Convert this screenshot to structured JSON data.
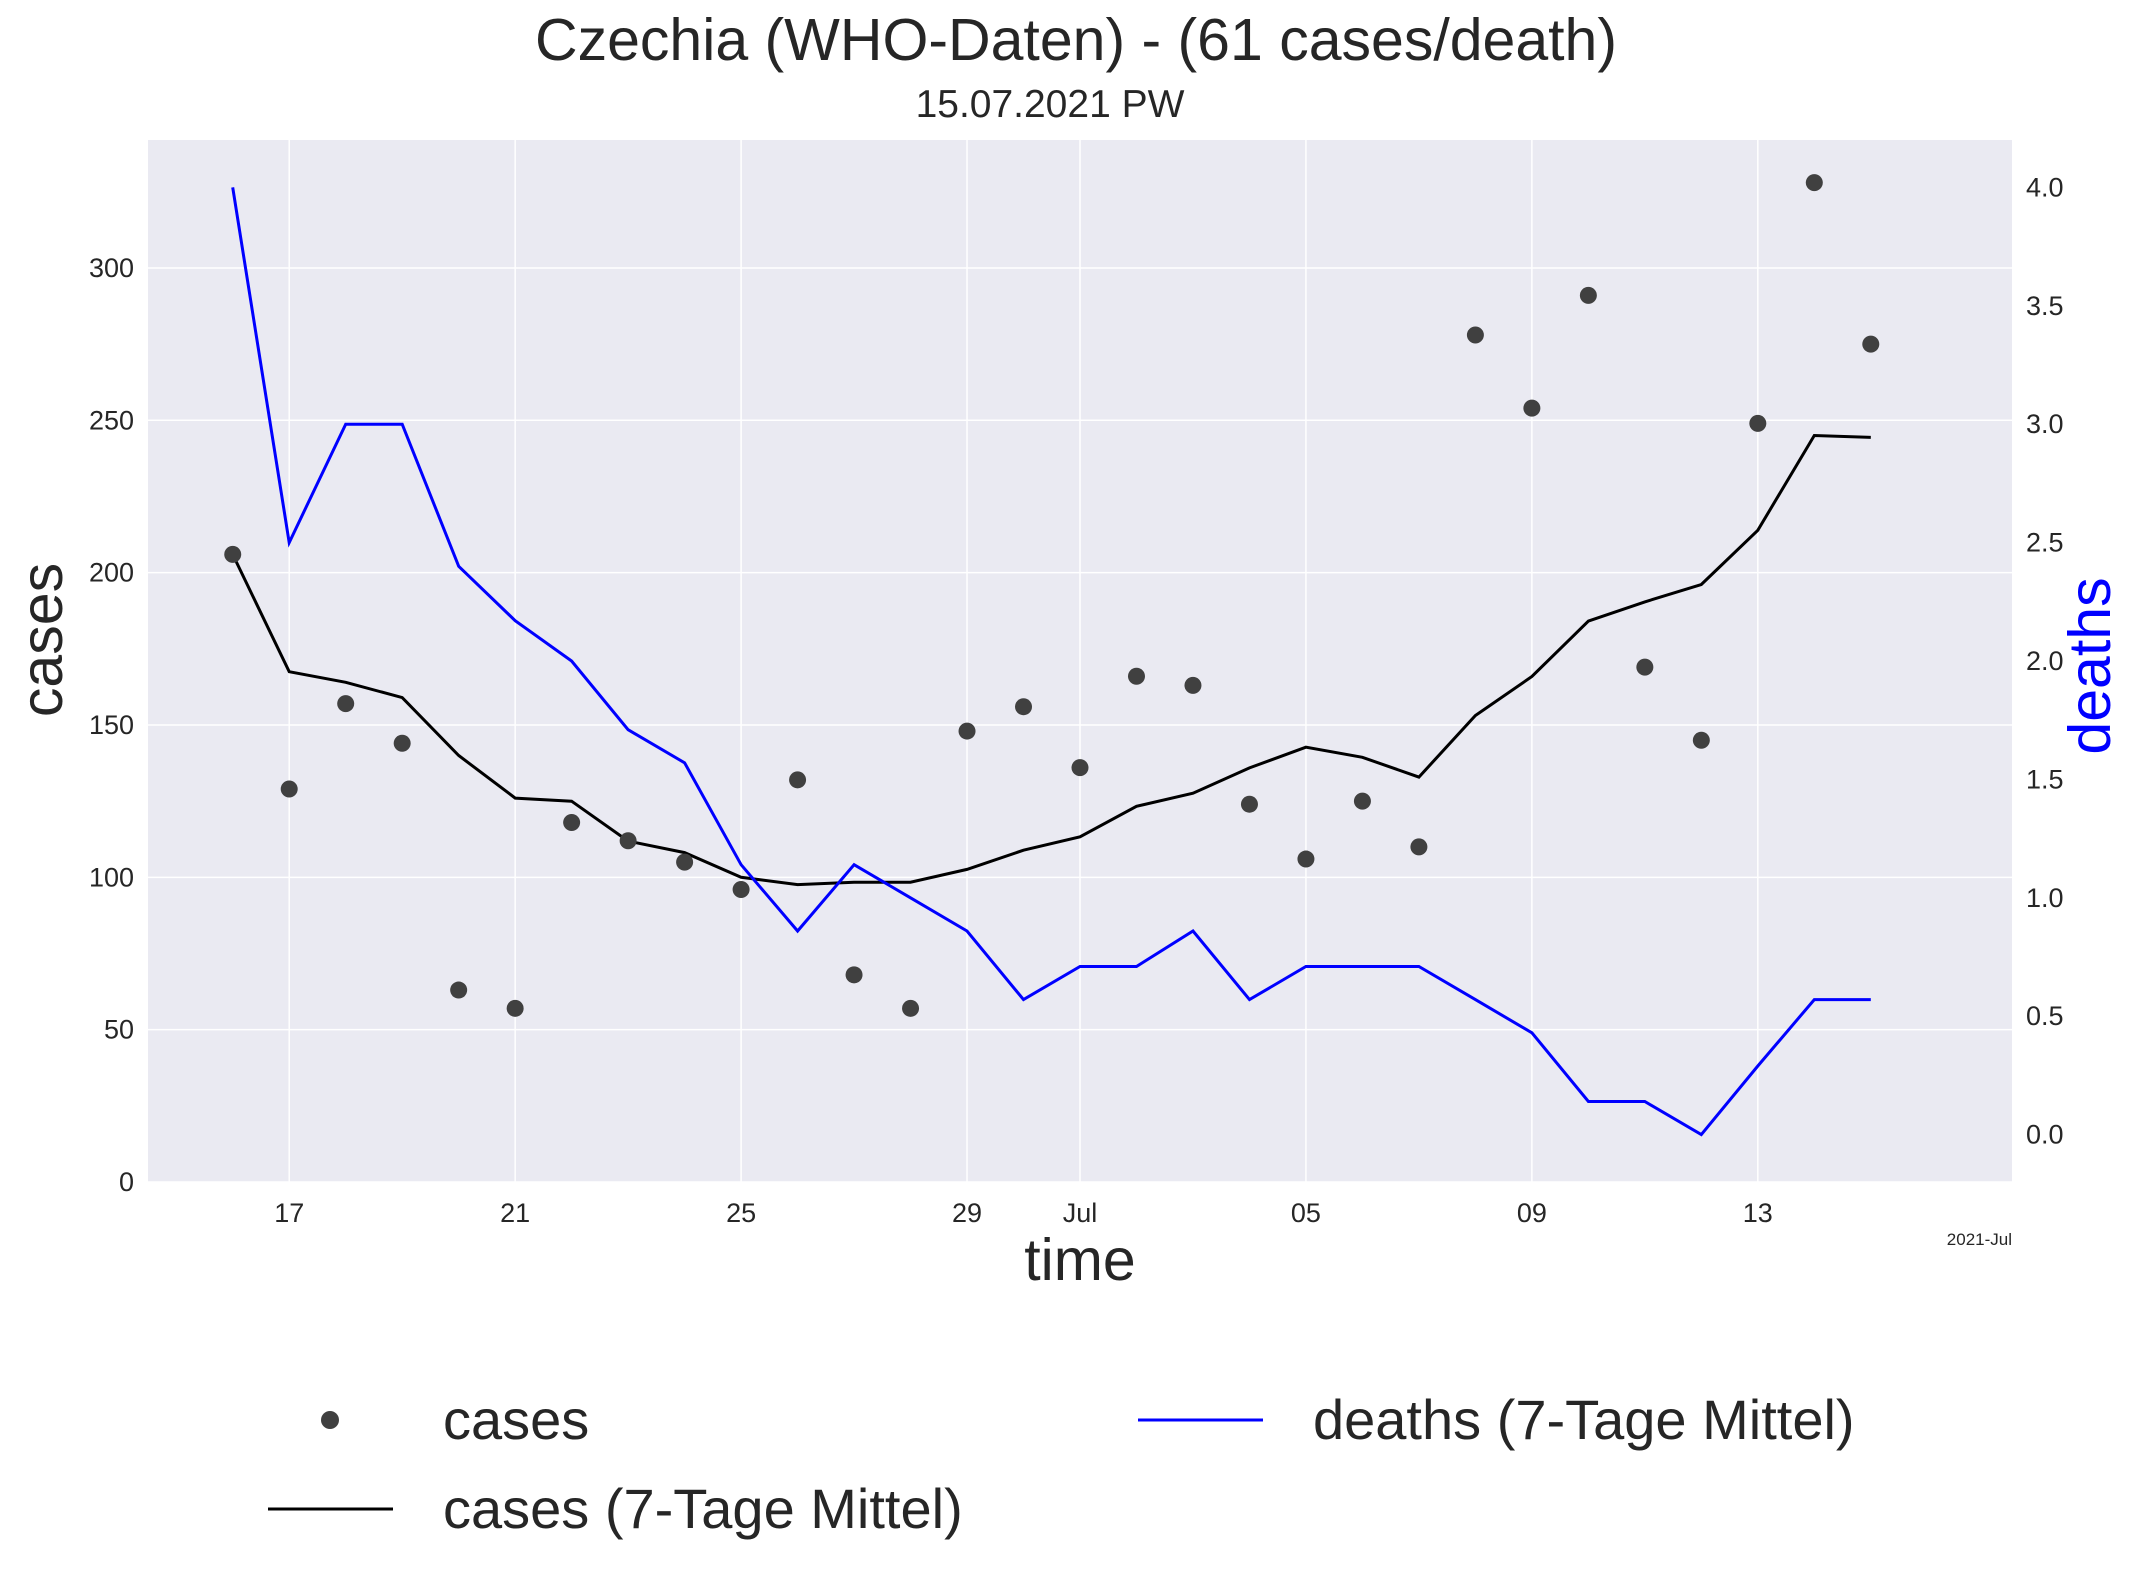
{
  "chart_data": {
    "type": "line",
    "title": "Czechia (WHO-Daten) - (61 cases/death)",
    "subtitle": "15.07.2021 PW",
    "xlabel": "time",
    "ylabel_left": "cases",
    "ylabel_right": "deaths",
    "x_offset_label": "2021-Jul",
    "x": [
      "2021-06-16",
      "2021-06-17",
      "2021-06-18",
      "2021-06-19",
      "2021-06-20",
      "2021-06-21",
      "2021-06-22",
      "2021-06-23",
      "2021-06-24",
      "2021-06-25",
      "2021-06-26",
      "2021-06-27",
      "2021-06-28",
      "2021-06-29",
      "2021-06-30",
      "2021-07-01",
      "2021-07-02",
      "2021-07-03",
      "2021-07-04",
      "2021-07-05",
      "2021-07-06",
      "2021-07-07",
      "2021-07-08",
      "2021-07-09",
      "2021-07-10",
      "2021-07-11",
      "2021-07-12",
      "2021-07-13",
      "2021-07-14",
      "2021-07-15"
    ],
    "x_ticks": [
      {
        "date": "2021-06-17",
        "label": "17"
      },
      {
        "date": "2021-06-21",
        "label": "21"
      },
      {
        "date": "2021-06-25",
        "label": "25"
      },
      {
        "date": "2021-06-29",
        "label": "29"
      },
      {
        "date": "2021-07-01",
        "label": "Jul"
      },
      {
        "date": "2021-07-05",
        "label": "05"
      },
      {
        "date": "2021-07-09",
        "label": "09"
      },
      {
        "date": "2021-07-13",
        "label": "13"
      }
    ],
    "ylim_left": [
      0,
      342
    ],
    "yticks_left": [
      0,
      50,
      100,
      150,
      200,
      250,
      300
    ],
    "ylim_right": [
      -0.2,
      4.2
    ],
    "yticks_right": [
      0.0,
      0.5,
      1.0,
      1.5,
      2.0,
      2.5,
      3.0,
      3.5,
      4.0
    ],
    "grid": true,
    "legend_position": "bottom",
    "series": [
      {
        "name": "cases",
        "kind": "scatter",
        "axis": "left",
        "color": "#404040",
        "values": [
          206,
          129,
          157,
          144,
          63,
          57,
          118,
          112,
          105,
          96,
          132,
          68,
          57,
          148,
          156,
          136,
          166,
          163,
          124,
          106,
          125,
          110,
          278,
          254,
          291,
          169,
          145,
          249,
          328,
          275
        ]
      },
      {
        "name": "cases (7-Tage Mittel)",
        "kind": "line",
        "axis": "left",
        "color": "#000000",
        "values": [
          206,
          167.5,
          164,
          159,
          140,
          126,
          125,
          111.9,
          108.1,
          100,
          97.6,
          98.4,
          98.4,
          102.6,
          108.9,
          113.3,
          123.3,
          127.6,
          135.9,
          142.7,
          139.4,
          132.9,
          153.1,
          165.9,
          184.1,
          190.4,
          196.1,
          213.9,
          245,
          244.4
        ]
      },
      {
        "name": "deaths (7-Tage Mittel)",
        "kind": "line",
        "axis": "right",
        "color": "#0000ff",
        "values": [
          4.0,
          2.5,
          3.0,
          3.0,
          2.4,
          2.17,
          2.0,
          1.71,
          1.57,
          1.14,
          0.86,
          1.14,
          1.0,
          0.86,
          0.57,
          0.71,
          0.71,
          0.86,
          0.57,
          0.71,
          0.71,
          0.71,
          0.57,
          0.43,
          0.14,
          0.14,
          0.0,
          0.29,
          0.57,
          0.57
        ]
      }
    ]
  }
}
